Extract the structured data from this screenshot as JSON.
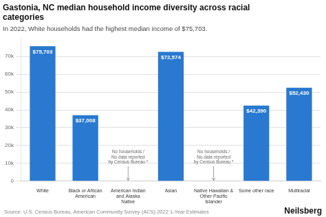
{
  "chart_data": {
    "type": "bar",
    "title": "Gastonia, NC median household income diversity across racial\ncategories",
    "subtitle": "In 2022, White households had the highest median income of $75,703.",
    "categories": [
      "White",
      "Black or African\nAmerican",
      "American Indian\nand Alaska\nNative",
      "Asian",
      "Native Hawaiian &\nOther Pacific\nIslander",
      "Some other race",
      "Multiracial"
    ],
    "values": [
      75703,
      37008,
      0,
      72574,
      0,
      42390,
      52430
    ],
    "value_labels": [
      "$75,703",
      "$37,008",
      null,
      "$72,574",
      null,
      "$42,390",
      "$52,430"
    ],
    "data_labels": true,
    "color": "#2979d0",
    "ylim": [
      0,
      80000
    ],
    "yticks": [
      0,
      {
        "value": 10000,
        "label": "10k"
      },
      {
        "value": 20000,
        "label": "20k"
      },
      {
        "value": 30000,
        "label": "30k"
      },
      {
        "value": 40000,
        "label": "40k"
      },
      {
        "value": 50000,
        "label": "50k"
      },
      {
        "value": 60000,
        "label": "60k"
      },
      {
        "value": 70000,
        "label": "70k"
      }
    ],
    "grid": true,
    "annotations": [
      {
        "text": "No households /\nNo data reported\nby Census Bureau *",
        "category": "American Indian\nand Alaska\nNative"
      },
      {
        "text": "No households /\nNo data reported\nby Census Bureau *",
        "category": "Native Hawaiian &\nOther Pacific\nIslander"
      }
    ],
    "source": "Source: U.S. Census Bureau, American Community Survey (ACS) 2022 1-Year Estimates",
    "brand": "Neilsberg"
  }
}
